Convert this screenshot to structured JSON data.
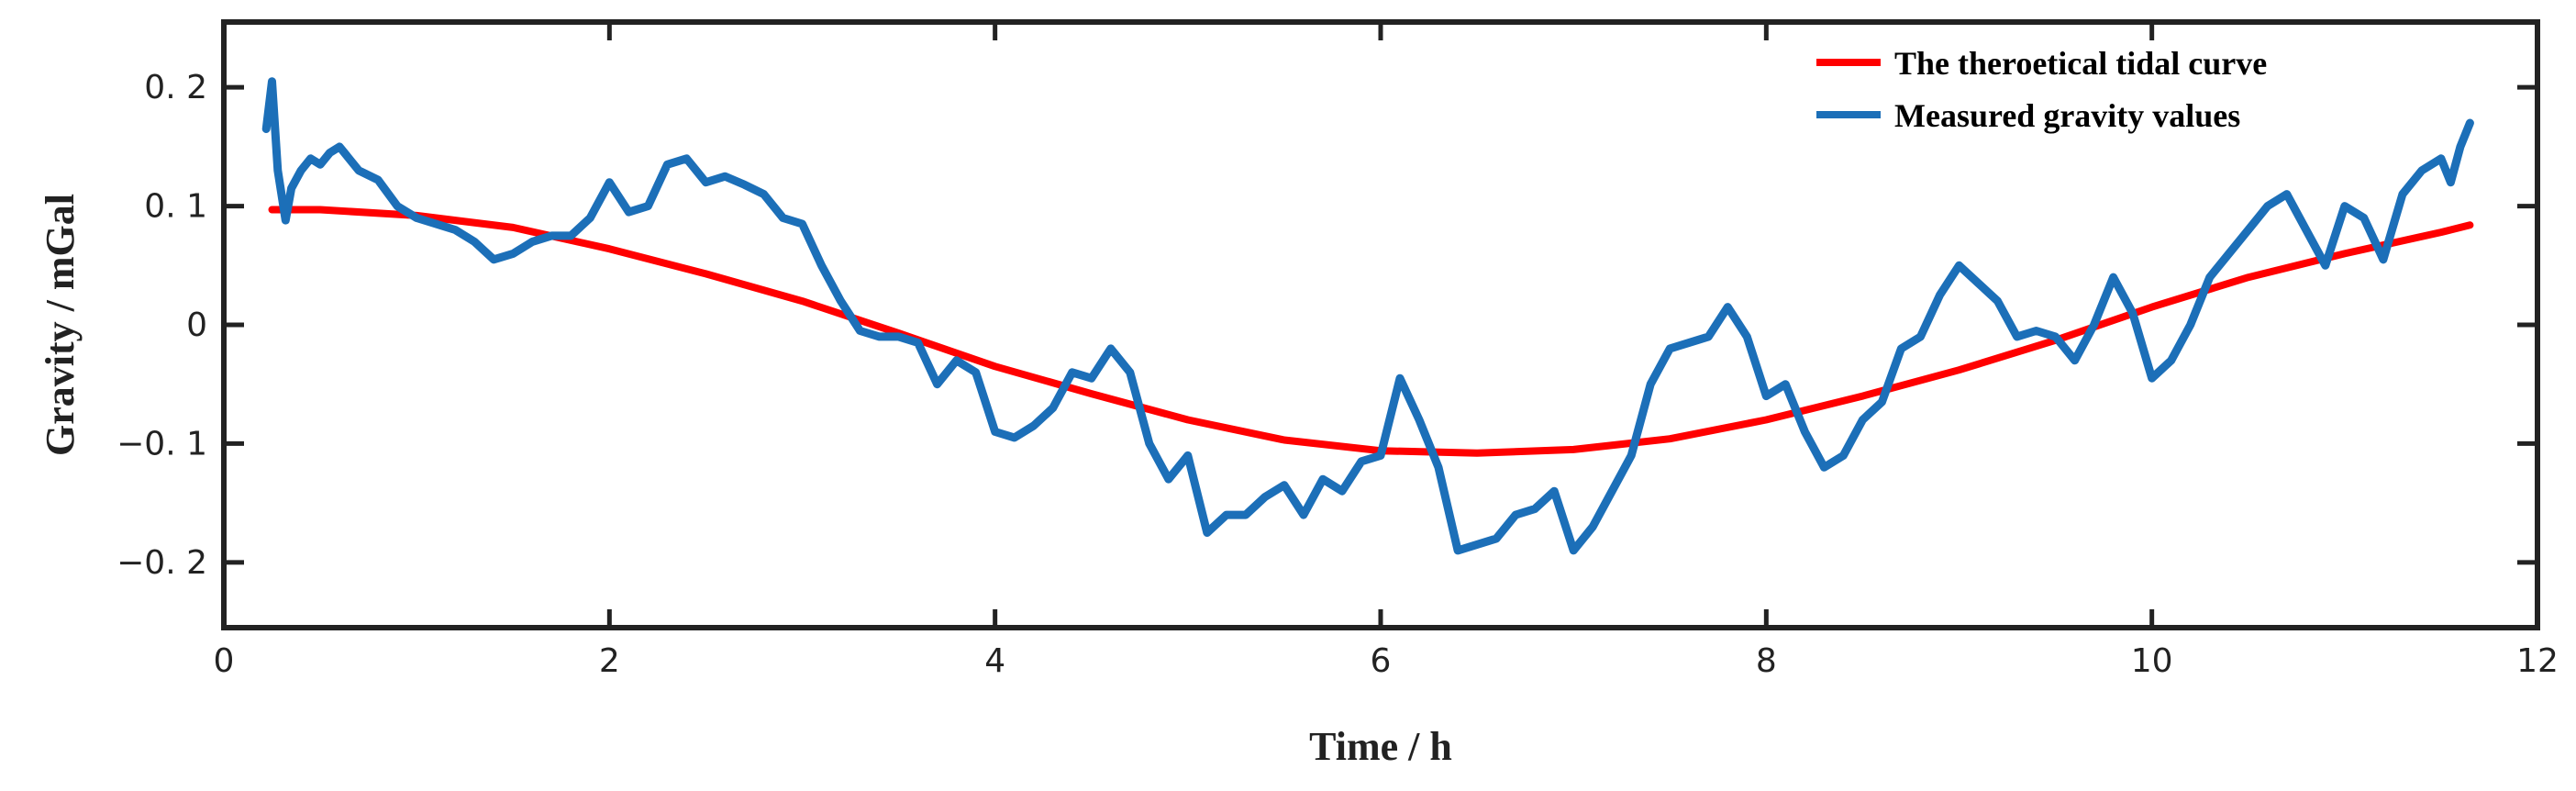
{
  "chart_data": {
    "type": "line",
    "title": "",
    "xlabel": "Time / h",
    "ylabel": "Gravity / mGal",
    "xlim": [
      0,
      12
    ],
    "ylim": [
      -0.255,
      0.255
    ],
    "xticks": [
      0,
      2,
      4,
      6,
      8,
      10,
      12
    ],
    "xtick_labels": [
      "0",
      "2",
      "4",
      "6",
      "8",
      "10",
      "12"
    ],
    "yticks": [
      0.2,
      0.1,
      0,
      -0.1,
      -0.2
    ],
    "ytick_labels": [
      "0. 2",
      "0. 1",
      "0",
      "−0. 1",
      "−0. 2"
    ],
    "grid": false,
    "legend_position": "top-right",
    "series": [
      {
        "name": "The theroetical tidal curve",
        "color": "#ff0000",
        "x": [
          0.25,
          0.5,
          1.0,
          1.5,
          2.0,
          2.5,
          3.0,
          3.5,
          4.0,
          4.5,
          5.0,
          5.5,
          6.0,
          6.5,
          7.0,
          7.5,
          8.0,
          8.5,
          9.0,
          9.5,
          10.0,
          10.5,
          11.0,
          11.5,
          11.65
        ],
        "y": [
          0.097,
          0.097,
          0.092,
          0.082,
          0.064,
          0.043,
          0.02,
          -0.007,
          -0.035,
          -0.058,
          -0.08,
          -0.097,
          -0.106,
          -0.108,
          -0.105,
          -0.096,
          -0.08,
          -0.06,
          -0.038,
          -0.013,
          0.015,
          0.04,
          0.06,
          0.078,
          0.084
        ]
      },
      {
        "name": "Measured gravity values",
        "color": "#1c6fb8",
        "x": [
          0.22,
          0.25,
          0.28,
          0.32,
          0.35,
          0.4,
          0.45,
          0.5,
          0.55,
          0.6,
          0.7,
          0.8,
          0.9,
          1.0,
          1.1,
          1.2,
          1.3,
          1.4,
          1.5,
          1.6,
          1.7,
          1.8,
          1.9,
          2.0,
          2.1,
          2.2,
          2.3,
          2.4,
          2.5,
          2.6,
          2.7,
          2.8,
          2.9,
          3.0,
          3.1,
          3.2,
          3.3,
          3.4,
          3.5,
          3.6,
          3.7,
          3.8,
          3.9,
          4.0,
          4.1,
          4.2,
          4.3,
          4.4,
          4.5,
          4.6,
          4.7,
          4.8,
          4.9,
          5.0,
          5.1,
          5.2,
          5.3,
          5.4,
          5.5,
          5.6,
          5.7,
          5.8,
          5.9,
          6.0,
          6.1,
          6.2,
          6.3,
          6.4,
          6.5,
          6.6,
          6.7,
          6.8,
          6.9,
          7.0,
          7.1,
          7.2,
          7.3,
          7.4,
          7.5,
          7.6,
          7.7,
          7.8,
          7.9,
          8.0,
          8.1,
          8.2,
          8.3,
          8.4,
          8.5,
          8.6,
          8.7,
          8.8,
          8.9,
          9.0,
          9.1,
          9.2,
          9.3,
          9.4,
          9.5,
          9.6,
          9.7,
          9.8,
          9.9,
          10.0,
          10.1,
          10.2,
          10.3,
          10.4,
          10.5,
          10.6,
          10.7,
          10.8,
          10.9,
          11.0,
          11.1,
          11.2,
          11.3,
          11.4,
          11.5,
          11.55,
          11.6,
          11.65
        ],
        "y": [
          0.165,
          0.205,
          0.13,
          0.088,
          0.115,
          0.13,
          0.14,
          0.135,
          0.145,
          0.15,
          0.13,
          0.122,
          0.1,
          0.09,
          0.085,
          0.08,
          0.07,
          0.055,
          0.06,
          0.07,
          0.075,
          0.075,
          0.09,
          0.12,
          0.095,
          0.1,
          0.135,
          0.14,
          0.12,
          0.125,
          0.118,
          0.11,
          0.09,
          0.085,
          0.05,
          0.02,
          -0.005,
          -0.01,
          -0.01,
          -0.015,
          -0.05,
          -0.03,
          -0.04,
          -0.09,
          -0.095,
          -0.085,
          -0.07,
          -0.04,
          -0.045,
          -0.02,
          -0.04,
          -0.1,
          -0.13,
          -0.11,
          -0.175,
          -0.16,
          -0.16,
          -0.145,
          -0.135,
          -0.16,
          -0.13,
          -0.14,
          -0.115,
          -0.11,
          -0.045,
          -0.08,
          -0.12,
          -0.19,
          -0.185,
          -0.18,
          -0.16,
          -0.155,
          -0.14,
          -0.19,
          -0.17,
          -0.14,
          -0.11,
          -0.05,
          -0.02,
          -0.015,
          -0.01,
          0.015,
          -0.01,
          -0.06,
          -0.05,
          -0.09,
          -0.12,
          -0.11,
          -0.08,
          -0.065,
          -0.02,
          -0.01,
          0.025,
          0.05,
          0.035,
          0.02,
          -0.01,
          -0.005,
          -0.01,
          -0.03,
          0.0,
          0.04,
          0.01,
          -0.045,
          -0.03,
          0.0,
          0.04,
          0.06,
          0.08,
          0.1,
          0.11,
          0.08,
          0.05,
          0.1,
          0.09,
          0.055,
          0.11,
          0.13,
          0.14,
          0.12,
          0.15,
          0.17
        ]
      }
    ]
  }
}
